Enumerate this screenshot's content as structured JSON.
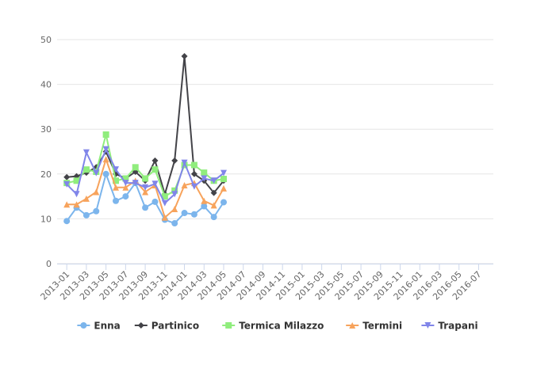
{
  "chart_data": {
    "type": "line",
    "categories": [
      "2013-01",
      null,
      "2013-03",
      null,
      "2013-05",
      null,
      "2013-07",
      null,
      "2013-09",
      null,
      "2013-11",
      null,
      "2014-01",
      null,
      "2014-03",
      null,
      "2014-05",
      null,
      "2014-07",
      null,
      "2014-09",
      null,
      "2014-11",
      null,
      "2015-01",
      null,
      "2015-03",
      null,
      "2015-05",
      null,
      "2015-07",
      null,
      "2015-09",
      null,
      "2015-11",
      null,
      "2016-01",
      null,
      "2016-03",
      null,
      "2016-05",
      null,
      "2016-07",
      null
    ],
    "series": [
      {
        "name": "Enna",
        "color": "#7cb5ec",
        "marker": "circle",
        "values": [
          9.5,
          12.5,
          10.8,
          11.7,
          20,
          14,
          15,
          18,
          12.5,
          13.8,
          9.8,
          9,
          11.3,
          11,
          12.8,
          10.4,
          13.7,
          null,
          null,
          null,
          null,
          null,
          null,
          null,
          null,
          null,
          null,
          null,
          null,
          null,
          null,
          null,
          null,
          null,
          null,
          null,
          null,
          null,
          null,
          null,
          null,
          null,
          null,
          null
        ]
      },
      {
        "name": "Partinico",
        "color": "#434348",
        "marker": "diamond",
        "values": [
          19.3,
          19.5,
          20.3,
          21.5,
          25,
          20,
          19,
          20.5,
          18.5,
          23,
          15.5,
          23,
          46.3,
          20,
          18.5,
          15.8,
          18.5,
          null,
          null,
          null,
          null,
          null,
          null,
          null,
          null,
          null,
          null,
          null,
          null,
          null,
          null,
          null,
          null,
          null,
          null,
          null,
          null,
          null,
          null,
          null,
          null,
          null,
          null,
          null
        ]
      },
      {
        "name": "Termica Milazzo",
        "color": "#90ed7d",
        "marker": "square",
        "values": [
          18,
          18.5,
          21,
          20.5,
          28.8,
          18.5,
          19,
          21.5,
          19,
          21,
          15,
          16.3,
          22,
          22,
          20.3,
          18.5,
          18.9,
          null,
          null,
          null,
          null,
          null,
          null,
          null,
          null,
          null,
          null,
          null,
          null,
          null,
          null,
          null,
          null,
          null,
          null,
          null,
          null,
          null,
          null,
          null,
          null,
          null,
          null,
          null
        ]
      },
      {
        "name": "Termini",
        "color": "#f7a35c",
        "marker": "triangle",
        "values": [
          13.2,
          13.2,
          14.5,
          16,
          23.3,
          17,
          17,
          18.5,
          16,
          17.5,
          10.3,
          12.2,
          17.5,
          18,
          14,
          13,
          16.8,
          null,
          null,
          null,
          null,
          null,
          null,
          null,
          null,
          null,
          null,
          null,
          null,
          null,
          null,
          null,
          null,
          null,
          null,
          null,
          null,
          null,
          null,
          null,
          null,
          null,
          null,
          null
        ]
      },
      {
        "name": "Trapani",
        "color": "#8085e9",
        "marker": "triangle-down",
        "values": [
          17.7,
          15.5,
          24.8,
          20.2,
          25.5,
          21,
          18,
          18,
          17,
          17.8,
          13.5,
          15.5,
          22.5,
          17.2,
          19,
          18.5,
          20.2,
          null,
          null,
          null,
          null,
          null,
          null,
          null,
          null,
          null,
          null,
          null,
          null,
          null,
          null,
          null,
          null,
          null,
          null,
          null,
          null,
          null,
          null,
          null,
          null,
          null,
          null,
          null
        ]
      }
    ],
    "ylim": [
      0,
      50
    ],
    "yticks": [
      0,
      10,
      20,
      30,
      40,
      50
    ],
    "grid": true,
    "legend": "bottom"
  }
}
